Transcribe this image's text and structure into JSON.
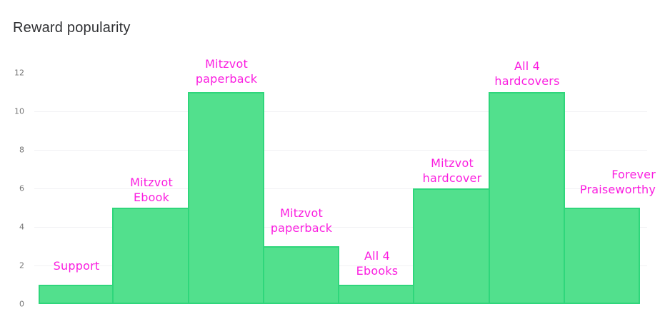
{
  "page": {
    "title": "Reward popularity"
  },
  "colors": {
    "background": "#ffffff",
    "bar_fill": "#52e08d",
    "bar_border": "#2fd67b",
    "bar_label_text": "#fb1ee0",
    "title_text": "#2f3033",
    "tick_text": "#757575",
    "gridline": "#f1f1f4"
  },
  "chart_data": {
    "type": "bar",
    "title": "Reward popularity",
    "categories": [
      "Support",
      "Mitzvot Ebook",
      "Mitzvot paperback",
      "Mitzvot paperback",
      "All 4 Ebooks",
      "Mitzvot hardcover",
      "All 4 hardcovers",
      "Forever Praiseworthy"
    ],
    "values": [
      1,
      5,
      11,
      3,
      1,
      6,
      11,
      5
    ],
    "label_lines": [
      [
        "Support"
      ],
      [
        "Mitzvot",
        "Ebook"
      ],
      [
        "Mitzvot",
        "paperback"
      ],
      [
        "Mitzvot",
        "paperback"
      ],
      [
        "All 4",
        "Ebooks"
      ],
      [
        "Mitzvot",
        "hardcover"
      ],
      [
        "All 4",
        "hardcovers"
      ],
      [
        "Forever",
        "Praiseworthy"
      ]
    ],
    "xlabel": "",
    "ylabel": "",
    "ylim": [
      0,
      12
    ],
    "yticks": [
      0,
      2,
      4,
      6,
      8,
      10,
      12
    ],
    "gridlines_at": [
      2,
      4,
      6,
      8,
      10
    ],
    "bar_gap": 0,
    "legend": "none",
    "category_label_position": "above-bars",
    "category_label_color": "#fb1ee0"
  }
}
